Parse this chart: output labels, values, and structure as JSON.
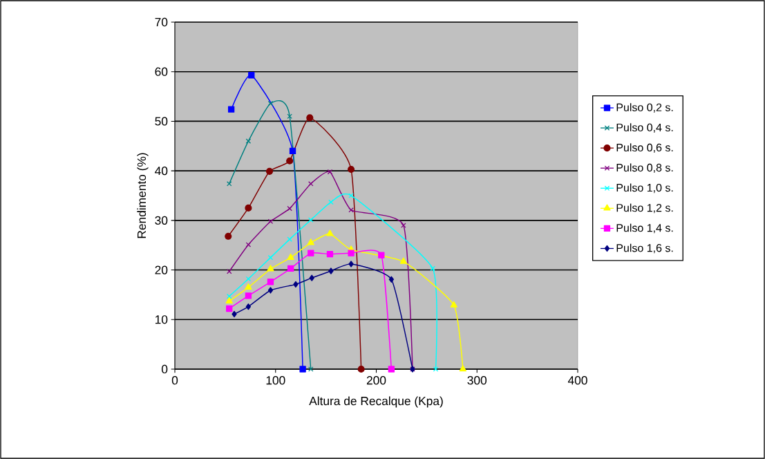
{
  "chart_data": {
    "type": "line",
    "xlabel": "Altura de Recalque (Kpa)",
    "ylabel": "Rendimento (%)",
    "xlim": [
      0,
      400
    ],
    "ylim": [
      0,
      70
    ],
    "xticks": [
      0,
      100,
      200,
      300,
      400
    ],
    "yticks": [
      0,
      10,
      20,
      30,
      40,
      50,
      60,
      70
    ],
    "grid": "y",
    "legend": "right",
    "series": [
      {
        "name": "Pulso 0,2 s.",
        "color": "#0000ff",
        "marker": "square",
        "x": [
          56,
          76,
          117,
          127
        ],
        "values": [
          52.4,
          59.3,
          44.0,
          0
        ]
      },
      {
        "name": "Pulso 0,4 s.",
        "color": "#008080",
        "marker": "cross",
        "x": [
          54,
          73,
          95,
          114,
          135
        ],
        "values": [
          37.4,
          46.0,
          53.6,
          51.0,
          0
        ]
      },
      {
        "name": "Pulso 0,6 s.",
        "color": "#800000",
        "marker": "circle",
        "x": [
          53,
          73,
          94,
          114,
          134,
          175,
          185
        ],
        "values": [
          26.8,
          32.5,
          39.9,
          42.0,
          50.7,
          40.3,
          0
        ]
      },
      {
        "name": "Pulso 0,8 s.",
        "color": "#800080",
        "marker": "cross",
        "x": [
          54,
          73,
          95,
          114,
          135,
          154,
          175,
          227,
          236
        ],
        "values": [
          19.7,
          25.1,
          29.8,
          32.4,
          37.4,
          39.8,
          32.1,
          29.0,
          0
        ]
      },
      {
        "name": "Pulso 1,0 s.",
        "color": "#00ffff",
        "marker": "cross",
        "x": [
          54,
          73,
          95,
          114,
          135,
          155,
          175,
          256,
          259
        ],
        "values": [
          14.7,
          18.2,
          22.5,
          26.2,
          30.1,
          33.7,
          35.0,
          20.3,
          0
        ]
      },
      {
        "name": "Pulso 1,2 s.",
        "color": "#ffff00",
        "marker": "triangle",
        "x": [
          54,
          73,
          95,
          115,
          135,
          154,
          175,
          227,
          277,
          286
        ],
        "values": [
          13.7,
          16.5,
          20.2,
          22.5,
          25.5,
          27.3,
          24.1,
          21.7,
          12.9,
          0
        ]
      },
      {
        "name": "Pulso 1,4 s.",
        "color": "#ff00ff",
        "marker": "square",
        "x": [
          54,
          73,
          95,
          115,
          135,
          154,
          175,
          205,
          215
        ],
        "values": [
          12.2,
          14.8,
          17.6,
          20.3,
          23.4,
          23.2,
          23.4,
          23.0,
          0
        ]
      },
      {
        "name": "Pulso 1,6 s.",
        "color": "#000080",
        "marker": "diamond",
        "x": [
          59,
          73,
          95,
          120,
          136,
          155,
          175,
          215,
          236
        ],
        "values": [
          11.1,
          12.6,
          15.9,
          17.1,
          18.4,
          19.8,
          21.2,
          18.1,
          0
        ]
      }
    ]
  }
}
